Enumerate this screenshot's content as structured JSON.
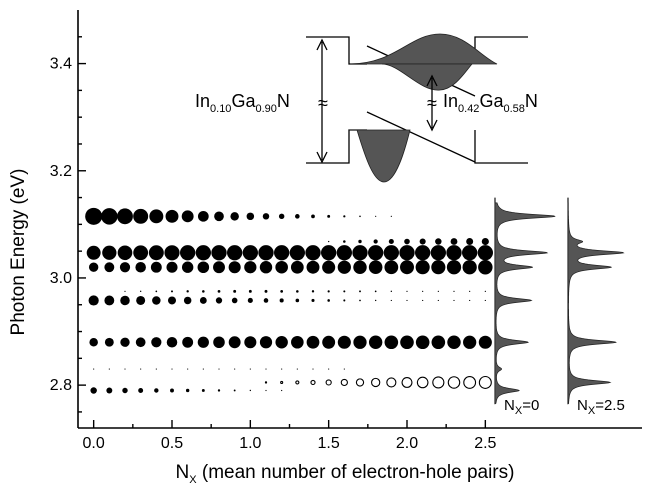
{
  "chart_data": {
    "type": "scatter",
    "title": "",
    "xlabel": "N",
    "xlabel_sub": "X",
    "xlabel_rest": " (mean number of electron-hole pairs)",
    "ylabel": "Photon Energy (eV)",
    "xlim": [
      -0.1,
      3.5
    ],
    "ylim": [
      2.72,
      3.5
    ],
    "x_ticks": [
      0.0,
      0.5,
      1.0,
      1.5,
      2.0,
      2.5
    ],
    "x_tick_labels": [
      "0.0",
      "0.5",
      "1.0",
      "1.5",
      "2.0",
      "2.5"
    ],
    "y_ticks": [
      2.8,
      3.0,
      3.2,
      3.4
    ],
    "y_tick_labels": [
      "2.8",
      "3.0",
      "3.2",
      "3.4"
    ],
    "x_values": [
      0.0,
      0.1,
      0.2,
      0.3,
      0.4,
      0.5,
      0.6,
      0.7,
      0.8,
      0.9,
      1.0,
      1.1,
      1.2,
      1.3,
      1.4,
      1.5,
      1.6,
      1.7,
      1.8,
      1.9,
      2.0,
      2.1,
      2.2,
      2.3,
      2.4,
      2.5
    ],
    "series": [
      {
        "energy": 3.115,
        "open": false,
        "relative_size": [
          1.0,
          0.97,
          0.93,
          0.88,
          0.82,
          0.76,
          0.7,
          0.63,
          0.57,
          0.5,
          0.44,
          0.38,
          0.32,
          0.27,
          0.22,
          0.17,
          0.13,
          0.09,
          0.06,
          0.04,
          0,
          0,
          0,
          0,
          0,
          0
        ]
      },
      {
        "energy": 3.047,
        "open": false,
        "relative_size": [
          0.82,
          0.84,
          0.86,
          0.87,
          0.88,
          0.89,
          0.9,
          0.9,
          0.9,
          0.9,
          0.9,
          0.9,
          0.9,
          0.9,
          0.9,
          0.9,
          0.9,
          0.9,
          0.9,
          0.9,
          0.9,
          0.9,
          0.9,
          0.9,
          0.9,
          0.9
        ]
      },
      {
        "energy": 3.068,
        "open": false,
        "relative_size": [
          0,
          0,
          0,
          0,
          0,
          0,
          0,
          0,
          0,
          0,
          0,
          0,
          0,
          0,
          0,
          0.08,
          0.15,
          0.2,
          0.25,
          0.3,
          0.33,
          0.36,
          0.38,
          0.4,
          0.41,
          0.42
        ]
      },
      {
        "energy": 3.02,
        "open": false,
        "relative_size": [
          0.55,
          0.58,
          0.6,
          0.62,
          0.64,
          0.65,
          0.67,
          0.68,
          0.7,
          0.71,
          0.72,
          0.73,
          0.74,
          0.75,
          0.76,
          0.77,
          0.78,
          0.79,
          0.8,
          0.81,
          0.82,
          0.83,
          0.83,
          0.84,
          0.84,
          0.85
        ]
      },
      {
        "energy": 2.958,
        "open": false,
        "relative_size": [
          0.6,
          0.58,
          0.56,
          0.53,
          0.5,
          0.47,
          0.44,
          0.4,
          0.37,
          0.33,
          0.3,
          0.27,
          0.24,
          0.21,
          0.18,
          0.15,
          0.12,
          0.1,
          0.08,
          0.06,
          0.04,
          0.03,
          0.02,
          0.01,
          0.01,
          0.01
        ]
      },
      {
        "energy": 2.975,
        "open": false,
        "relative_size": [
          0,
          0,
          0.05,
          0.08,
          0.1,
          0.12,
          0.14,
          0.15,
          0.16,
          0.17,
          0.17,
          0.17,
          0.16,
          0.15,
          0.14,
          0.13,
          0.12,
          0.11,
          0.1,
          0.08,
          0.07,
          0.06,
          0.05,
          0.04,
          0.03,
          0.02
        ]
      },
      {
        "energy": 2.88,
        "open": false,
        "relative_size": [
          0.5,
          0.52,
          0.55,
          0.57,
          0.6,
          0.62,
          0.64,
          0.66,
          0.68,
          0.7,
          0.71,
          0.72,
          0.73,
          0.74,
          0.75,
          0.76,
          0.77,
          0.78,
          0.79,
          0.8,
          0.8,
          0.8,
          0.8,
          0.79,
          0.78,
          0.77
        ]
      },
      {
        "energy": 2.83,
        "open": false,
        "relative_size": [
          0.06,
          0.06,
          0.06,
          0.05,
          0.05,
          0.05,
          0.04,
          0.04,
          0.04,
          0.03,
          0.03,
          0.03,
          0.02,
          0.02,
          0.02,
          0.01,
          0.01,
          0,
          0,
          0,
          0,
          0,
          0,
          0,
          0,
          0
        ]
      },
      {
        "energy": 2.79,
        "open": false,
        "relative_size": [
          0.38,
          0.35,
          0.32,
          0.29,
          0.26,
          0.23,
          0.2,
          0.17,
          0.14,
          0.11,
          0.08,
          0.06,
          0.04,
          0,
          0,
          0,
          0,
          0,
          0,
          0,
          0,
          0,
          0,
          0,
          0,
          0
        ]
      },
      {
        "energy": 2.805,
        "open": true,
        "relative_size": [
          0,
          0,
          0,
          0,
          0,
          0,
          0,
          0,
          0,
          0,
          0,
          0.06,
          0.12,
          0.18,
          0.24,
          0.3,
          0.36,
          0.42,
          0.48,
          0.53,
          0.58,
          0.62,
          0.65,
          0.67,
          0.69,
          0.7
        ]
      }
    ],
    "inset": {
      "left_label": {
        "base1": "In",
        "sub1": "0.10",
        "base2": "Ga",
        "sub2": "0.90",
        "base3": "N"
      },
      "right_label": {
        "base1": "In",
        "sub1": "0.42",
        "base2": "Ga",
        "sub2": "0.58",
        "base3": "N"
      },
      "break_symbol": "≈"
    },
    "spectra": [
      {
        "label_base": "N",
        "label_sub": "X",
        "label_rest": "=0",
        "peaks": [
          [
            3.115,
            1.0
          ],
          [
            3.047,
            0.85
          ],
          [
            3.02,
            0.6
          ],
          [
            2.958,
            0.6
          ],
          [
            2.88,
            0.55
          ],
          [
            2.79,
            0.4
          ],
          [
            2.83,
            0.1
          ]
        ]
      },
      {
        "label_base": "N",
        "label_sub": "X",
        "label_rest": "=2.5",
        "peaks": [
          [
            3.068,
            0.2
          ],
          [
            3.047,
            0.9
          ],
          [
            3.02,
            0.7
          ],
          [
            2.88,
            0.8
          ],
          [
            2.805,
            0.7
          ]
        ]
      }
    ]
  }
}
